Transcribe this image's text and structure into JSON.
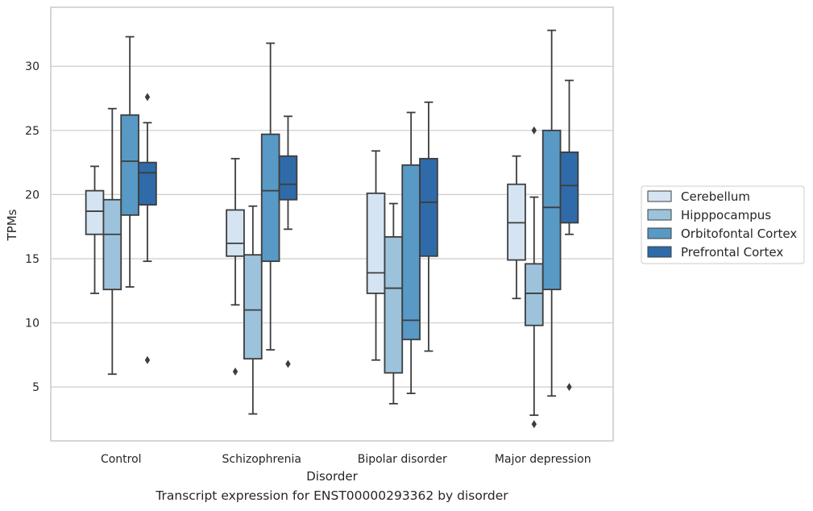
{
  "caption": "Transcript expression for ENST00000293362 by disorder",
  "chart_data": {
    "type": "box",
    "title": "",
    "xlabel": "Disorder",
    "ylabel": "TPMs",
    "ylim": [
      0.8,
      34.6
    ],
    "yticks": [
      5,
      10,
      15,
      20,
      25,
      30
    ],
    "grid": "horizontal",
    "legend_position": "right",
    "categories": [
      "Control",
      "Schizophrenia",
      "Bipolar disorder",
      "Major depression"
    ],
    "series": [
      {
        "name": "Cerebellum",
        "color": "#d4e4f2",
        "boxes": [
          {
            "whislo": 12.3,
            "q1": 16.9,
            "median": 18.7,
            "q3": 20.3,
            "whishi": 22.2,
            "fliers": []
          },
          {
            "whislo": 11.4,
            "q1": 15.2,
            "median": 16.2,
            "q3": 18.8,
            "whishi": 22.8,
            "fliers": [
              6.2
            ]
          },
          {
            "whislo": 7.1,
            "q1": 12.3,
            "median": 13.9,
            "q3": 20.1,
            "whishi": 23.4,
            "fliers": []
          },
          {
            "whislo": 11.9,
            "q1": 14.9,
            "median": 17.8,
            "q3": 20.8,
            "whishi": 23.0,
            "fliers": []
          }
        ]
      },
      {
        "name": "Hipppocampus",
        "color": "#9cc3db",
        "boxes": [
          {
            "whislo": 6.0,
            "q1": 12.6,
            "median": 16.9,
            "q3": 19.6,
            "whishi": 26.7,
            "fliers": []
          },
          {
            "whislo": 2.9,
            "q1": 7.2,
            "median": 11.0,
            "q3": 15.3,
            "whishi": 19.1,
            "fliers": []
          },
          {
            "whislo": 3.7,
            "q1": 6.1,
            "median": 12.7,
            "q3": 16.7,
            "whishi": 19.3,
            "fliers": []
          },
          {
            "whislo": 2.8,
            "q1": 9.8,
            "median": 12.3,
            "q3": 14.6,
            "whishi": 19.8,
            "fliers": [
              2.1,
              25.0
            ]
          }
        ]
      },
      {
        "name": "Orbitofontal Cortex",
        "color": "#5899c5",
        "boxes": [
          {
            "whislo": 12.8,
            "q1": 18.4,
            "median": 22.6,
            "q3": 26.2,
            "whishi": 32.3,
            "fliers": []
          },
          {
            "whislo": 7.9,
            "q1": 14.8,
            "median": 20.3,
            "q3": 24.7,
            "whishi": 31.8,
            "fliers": []
          },
          {
            "whislo": 4.5,
            "q1": 8.7,
            "median": 10.2,
            "q3": 22.3,
            "whishi": 26.4,
            "fliers": []
          },
          {
            "whislo": 4.3,
            "q1": 12.6,
            "median": 19.0,
            "q3": 25.0,
            "whishi": 32.8,
            "fliers": []
          }
        ]
      },
      {
        "name": "Prefrontal Cortex",
        "color": "#2e6ba8",
        "boxes": [
          {
            "whislo": 14.8,
            "q1": 19.2,
            "median": 21.7,
            "q3": 22.5,
            "whishi": 25.6,
            "fliers": [
              27.6,
              7.1
            ]
          },
          {
            "whislo": 17.3,
            "q1": 19.6,
            "median": 20.8,
            "q3": 23.0,
            "whishi": 26.1,
            "fliers": [
              6.8
            ]
          },
          {
            "whislo": 7.8,
            "q1": 15.2,
            "median": 19.4,
            "q3": 22.8,
            "whishi": 27.2,
            "fliers": []
          },
          {
            "whislo": 16.9,
            "q1": 17.8,
            "median": 20.7,
            "q3": 23.3,
            "whishi": 28.9,
            "fliers": [
              5.0
            ]
          }
        ]
      }
    ]
  }
}
